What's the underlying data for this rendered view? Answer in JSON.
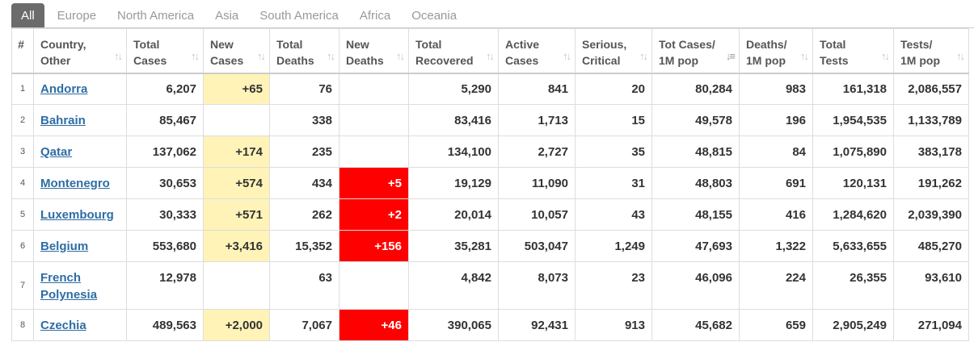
{
  "tabs": [
    {
      "label": "All",
      "active": true
    },
    {
      "label": "Europe",
      "active": false
    },
    {
      "label": "North America",
      "active": false
    },
    {
      "label": "Asia",
      "active": false
    },
    {
      "label": "South America",
      "active": false
    },
    {
      "label": "Africa",
      "active": false
    },
    {
      "label": "Oceania",
      "active": false
    }
  ],
  "columns": [
    {
      "line1": "#",
      "line2": "",
      "sort_icon": ""
    },
    {
      "line1": "Country,",
      "line2": "Other",
      "sort_icon": "sort-icon"
    },
    {
      "line1": "Total",
      "line2": "Cases",
      "sort_icon": "sort-icon"
    },
    {
      "line1": "New",
      "line2": "Cases",
      "sort_icon": "sort-icon"
    },
    {
      "line1": "Total",
      "line2": "Deaths",
      "sort_icon": "sort-icon"
    },
    {
      "line1": "New",
      "line2": "Deaths",
      "sort_icon": "sort-icon"
    },
    {
      "line1": "Total",
      "line2": "Recovered",
      "sort_icon": "sort-icon"
    },
    {
      "line1": "Active",
      "line2": "Cases",
      "sort_icon": "sort-icon"
    },
    {
      "line1": "Serious,",
      "line2": "Critical",
      "sort_icon": "sort-icon"
    },
    {
      "line1": "Tot Cases/",
      "line2": "1M pop",
      "sort_icon": "sort-desc-icon"
    },
    {
      "line1": "Deaths/",
      "line2": "1M pop",
      "sort_icon": "sort-icon"
    },
    {
      "line1": "Total",
      "line2": "Tests",
      "sort_icon": "sort-icon"
    },
    {
      "line1": "Tests/",
      "line2": "1M pop",
      "sort_icon": "sort-icon"
    }
  ],
  "rows": [
    {
      "rank": "1",
      "country": "Andorra",
      "total_cases": "6,207",
      "new_cases": "+65",
      "total_deaths": "76",
      "new_deaths": "",
      "total_recovered": "5,290",
      "active_cases": "841",
      "serious": "20",
      "cases_per_1m": "80,284",
      "deaths_per_1m": "983",
      "total_tests": "161,318",
      "tests_per_1m": "2,086,557"
    },
    {
      "rank": "2",
      "country": "Bahrain",
      "total_cases": "85,467",
      "new_cases": "",
      "total_deaths": "338",
      "new_deaths": "",
      "total_recovered": "83,416",
      "active_cases": "1,713",
      "serious": "15",
      "cases_per_1m": "49,578",
      "deaths_per_1m": "196",
      "total_tests": "1,954,535",
      "tests_per_1m": "1,133,789"
    },
    {
      "rank": "3",
      "country": "Qatar",
      "total_cases": "137,062",
      "new_cases": "+174",
      "total_deaths": "235",
      "new_deaths": "",
      "total_recovered": "134,100",
      "active_cases": "2,727",
      "serious": "35",
      "cases_per_1m": "48,815",
      "deaths_per_1m": "84",
      "total_tests": "1,075,890",
      "tests_per_1m": "383,178"
    },
    {
      "rank": "4",
      "country": "Montenegro",
      "total_cases": "30,653",
      "new_cases": "+574",
      "total_deaths": "434",
      "new_deaths": "+5",
      "total_recovered": "19,129",
      "active_cases": "11,090",
      "serious": "31",
      "cases_per_1m": "48,803",
      "deaths_per_1m": "691",
      "total_tests": "120,131",
      "tests_per_1m": "191,262"
    },
    {
      "rank": "5",
      "country": "Luxembourg",
      "total_cases": "30,333",
      "new_cases": "+571",
      "total_deaths": "262",
      "new_deaths": "+2",
      "total_recovered": "20,014",
      "active_cases": "10,057",
      "serious": "43",
      "cases_per_1m": "48,155",
      "deaths_per_1m": "416",
      "total_tests": "1,284,620",
      "tests_per_1m": "2,039,390"
    },
    {
      "rank": "6",
      "country": "Belgium",
      "total_cases": "553,680",
      "new_cases": "+3,416",
      "total_deaths": "15,352",
      "new_deaths": "+156",
      "total_recovered": "35,281",
      "active_cases": "503,047",
      "serious": "1,249",
      "cases_per_1m": "47,693",
      "deaths_per_1m": "1,322",
      "total_tests": "5,633,655",
      "tests_per_1m": "485,270"
    },
    {
      "rank": "7",
      "country": "French Polynesia",
      "total_cases": "12,978",
      "new_cases": "",
      "total_deaths": "63",
      "new_deaths": "",
      "total_recovered": "4,842",
      "active_cases": "8,073",
      "serious": "23",
      "cases_per_1m": "46,096",
      "deaths_per_1m": "224",
      "total_tests": "26,355",
      "tests_per_1m": "93,610"
    },
    {
      "rank": "8",
      "country": "Czechia",
      "total_cases": "489,563",
      "new_cases": "+2,000",
      "total_deaths": "7,067",
      "new_deaths": "+46",
      "total_recovered": "390,065",
      "active_cases": "92,431",
      "serious": "913",
      "cases_per_1m": "45,682",
      "deaths_per_1m": "659",
      "total_tests": "2,905,249",
      "tests_per_1m": "271,094"
    }
  ],
  "colors": {
    "new_cases_highlight": "#fff3b8",
    "new_deaths_highlight": "#ff0000",
    "link": "#2e6da4",
    "active_tab": "#6b6b6b"
  }
}
